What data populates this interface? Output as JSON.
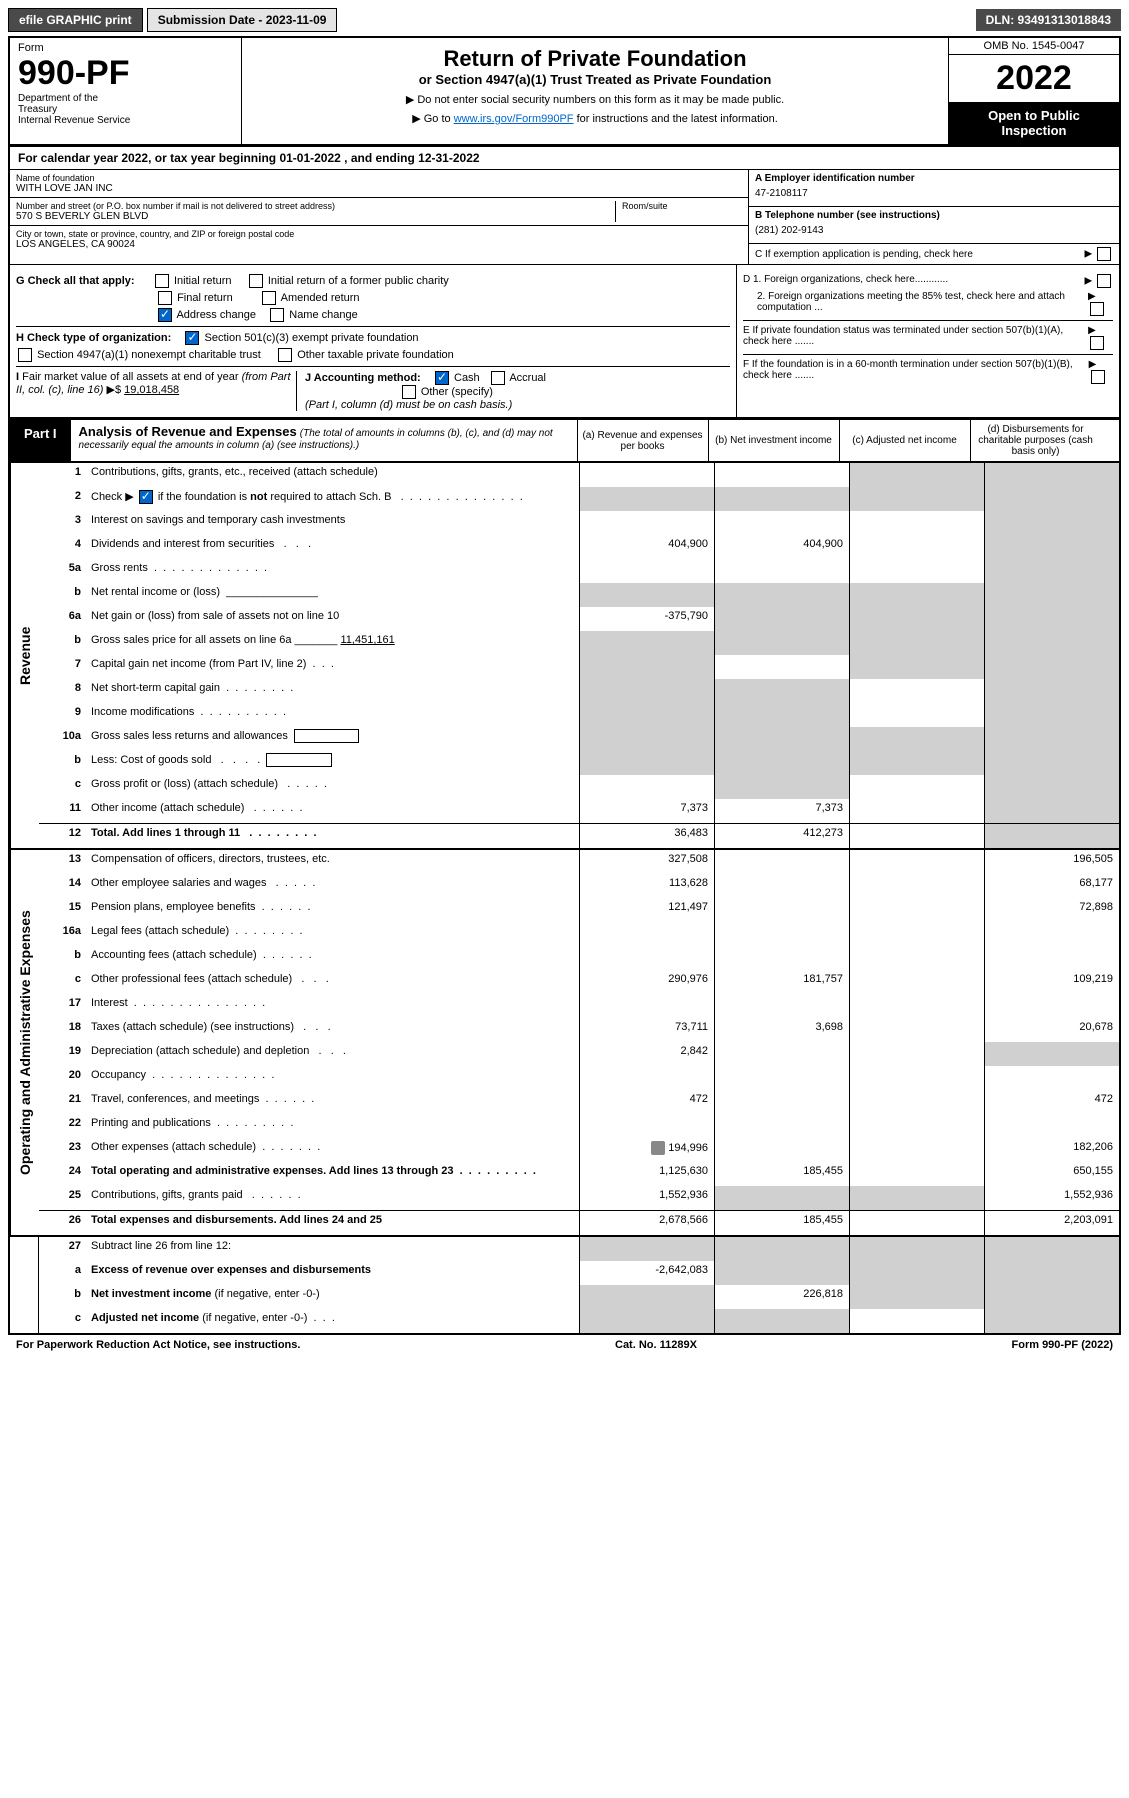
{
  "top_bar": {
    "efile": "efile GRAPHIC print",
    "submission": "Submission Date - 2023-11-09",
    "dln": "DLN: 93491313018843"
  },
  "header": {
    "form_label": "Form",
    "form_number": "990-PF",
    "dept": "Department of the Treasury\nInternal Revenue Service",
    "title": "Return of Private Foundation",
    "subtitle": "or Section 4947(a)(1) Trust Treated as Private Foundation",
    "instr1": "▶ Do not enter social security numbers on this form as it may be made public.",
    "instr2_prefix": "▶ Go to ",
    "instr2_link": "www.irs.gov/Form990PF",
    "instr2_suffix": " for instructions and the latest information.",
    "omb": "OMB No. 1545-0047",
    "year": "2022",
    "open": "Open to Public Inspection"
  },
  "calendar": "For calendar year 2022, or tax year beginning 01-01-2022                         , and ending 12-31-2022",
  "foundation": {
    "name_label": "Name of foundation",
    "name": "WITH LOVE JAN INC",
    "addr_label": "Number and street (or P.O. box number if mail is not delivered to street address)",
    "addr": "570 S BEVERLY GLEN BLVD",
    "room_label": "Room/suite",
    "city_label": "City or town, state or province, country, and ZIP or foreign postal code",
    "city": "LOS ANGELES, CA  90024",
    "ein_label": "A Employer identification number",
    "ein": "47-2108117",
    "phone_label": "B Telephone number (see instructions)",
    "phone": "(281) 202-9143",
    "c_label": "C If exemption application is pending, check here"
  },
  "checks": {
    "g_label": "G Check all that apply:",
    "g_opts": [
      "Initial return",
      "Initial return of a former public charity",
      "Final return",
      "Amended return",
      "Address change",
      "Name change"
    ],
    "h_label": "H Check type of organization:",
    "h_opts": [
      "Section 501(c)(3) exempt private foundation",
      "Section 4947(a)(1) nonexempt charitable trust",
      "Other taxable private foundation"
    ],
    "i_label": "I Fair market value of all assets at end of year (from Part II, col. (c), line 16) ▶$ ",
    "i_value": "19,018,458",
    "j_label": "J Accounting method:",
    "j_opts": [
      "Cash",
      "Accrual",
      "Other (specify)"
    ],
    "j_note": "(Part I, column (d) must be on cash basis.)",
    "d1": "D 1. Foreign organizations, check here............",
    "d2": "2. Foreign organizations meeting the 85% test, check here and attach computation ...",
    "e": "E If private foundation status was terminated under section 507(b)(1)(A), check here .......",
    "f": "F If the foundation is in a 60-month termination under section 507(b)(1)(B), check here ......."
  },
  "part1": {
    "label": "Part I",
    "title": "Analysis of Revenue and Expenses",
    "note": "(The total of amounts in columns (b), (c), and (d) may not necessarily equal the amounts in column (a) (see instructions).)",
    "cols": {
      "a": "(a) Revenue and expenses per books",
      "b": "(b) Net investment income",
      "c": "(c) Adjusted net income",
      "d": "(d) Disbursements for charitable purposes (cash basis only)"
    }
  },
  "side_labels": {
    "revenue": "Revenue",
    "expenses": "Operating and Administrative Expenses"
  },
  "rows": [
    {
      "n": "1",
      "d": "",
      "a": "",
      "b": "",
      "c": "",
      "shade_c": true,
      "shade_d": true
    },
    {
      "n": "2",
      "d": "",
      "a": "",
      "b": "",
      "c": "",
      "shade_a": true,
      "shade_b": true,
      "shade_c": true,
      "shade_d": true
    },
    {
      "n": "3",
      "d": "",
      "a": "",
      "b": "",
      "c": "",
      "shade_d": true
    },
    {
      "n": "4",
      "d": "",
      "a": "404,900",
      "b": "404,900",
      "c": "",
      "shade_d": true
    },
    {
      "n": "5a",
      "d": "",
      "a": "",
      "b": "",
      "c": "",
      "shade_d": true
    },
    {
      "n": "b",
      "d": "",
      "a": "",
      "b": "",
      "c": "",
      "shade_a": true,
      "shade_b": true,
      "shade_c": true,
      "shade_d": true
    },
    {
      "n": "6a",
      "d": "",
      "a": "-375,790",
      "b": "",
      "c": "",
      "shade_b": true,
      "shade_c": true,
      "shade_d": true
    },
    {
      "n": "b",
      "d": "",
      "a": "",
      "b": "",
      "c": "",
      "shade_a": true,
      "shade_b": true,
      "shade_c": true,
      "shade_d": true
    },
    {
      "n": "7",
      "d": "",
      "a": "",
      "b": "",
      "c": "",
      "shade_a": true,
      "shade_c": true,
      "shade_d": true
    },
    {
      "n": "8",
      "d": "",
      "a": "",
      "b": "",
      "c": "",
      "shade_a": true,
      "shade_b": true,
      "shade_d": true
    },
    {
      "n": "9",
      "d": "",
      "a": "",
      "b": "",
      "c": "",
      "shade_a": true,
      "shade_b": true,
      "shade_d": true
    },
    {
      "n": "10a",
      "d": "",
      "a": "",
      "b": "",
      "c": "",
      "shade_a": true,
      "shade_b": true,
      "shade_c": true,
      "shade_d": true
    },
    {
      "n": "b",
      "d": "",
      "a": "",
      "b": "",
      "c": "",
      "shade_a": true,
      "shade_b": true,
      "shade_c": true,
      "shade_d": true
    },
    {
      "n": "c",
      "d": "",
      "a": "",
      "b": "",
      "c": "",
      "shade_b": true,
      "shade_d": true
    },
    {
      "n": "11",
      "d": "",
      "a": "7,373",
      "b": "7,373",
      "c": "",
      "shade_d": true
    },
    {
      "n": "12",
      "d": "",
      "a": "36,483",
      "b": "412,273",
      "c": "",
      "bold": true,
      "shade_d": true,
      "divider": true
    }
  ],
  "exp_rows": [
    {
      "n": "13",
      "d": "196,505",
      "a": "327,508",
      "b": "",
      "c": ""
    },
    {
      "n": "14",
      "d": "68,177",
      "a": "113,628",
      "b": "",
      "c": ""
    },
    {
      "n": "15",
      "d": "72,898",
      "a": "121,497",
      "b": "",
      "c": ""
    },
    {
      "n": "16a",
      "d": "",
      "a": "",
      "b": "",
      "c": ""
    },
    {
      "n": "b",
      "d": "",
      "a": "",
      "b": "",
      "c": ""
    },
    {
      "n": "c",
      "d": "109,219",
      "a": "290,976",
      "b": "181,757",
      "c": ""
    },
    {
      "n": "17",
      "d": "",
      "a": "",
      "b": "",
      "c": ""
    },
    {
      "n": "18",
      "d": "20,678",
      "a": "73,711",
      "b": "3,698",
      "c": ""
    },
    {
      "n": "19",
      "d": "",
      "a": "2,842",
      "b": "",
      "c": "",
      "shade_d": true
    },
    {
      "n": "20",
      "d": "",
      "a": "",
      "b": "",
      "c": ""
    },
    {
      "n": "21",
      "d": "472",
      "a": "472",
      "b": "",
      "c": ""
    },
    {
      "n": "22",
      "d": "",
      "a": "",
      "b": "",
      "c": ""
    },
    {
      "n": "23",
      "d": "182,206",
      "a": "194,996",
      "b": "",
      "c": "",
      "icon": true
    },
    {
      "n": "24",
      "d": "650,155",
      "a": "1,125,630",
      "b": "185,455",
      "c": "",
      "bold": true
    },
    {
      "n": "25",
      "d": "1,552,936",
      "a": "1,552,936",
      "b": "",
      "c": "",
      "shade_b": true,
      "shade_c": true
    },
    {
      "n": "26",
      "d": "2,203,091",
      "a": "2,678,566",
      "b": "185,455",
      "c": "",
      "bold": true,
      "divider": true
    }
  ],
  "final_rows": [
    {
      "n": "27",
      "d": "",
      "a": "",
      "b": "",
      "c": "",
      "shade_a": true,
      "shade_b": true,
      "shade_c": true,
      "shade_d": true
    },
    {
      "n": "a",
      "d": "",
      "a": "-2,642,083",
      "b": "",
      "c": "",
      "bold": true,
      "shade_b": true,
      "shade_c": true,
      "shade_d": true
    },
    {
      "n": "b",
      "d": "",
      "a": "",
      "b": "226,818",
      "c": "",
      "bold": true,
      "shade_a": true,
      "shade_c": true,
      "shade_d": true
    },
    {
      "n": "c",
      "d": "",
      "a": "",
      "b": "",
      "c": "",
      "bold": true,
      "shade_a": true,
      "shade_b": true,
      "shade_d": true
    }
  ],
  "footer": {
    "left": "For Paperwork Reduction Act Notice, see instructions.",
    "center": "Cat. No. 11289X",
    "right": "Form 990-PF (2022)"
  }
}
